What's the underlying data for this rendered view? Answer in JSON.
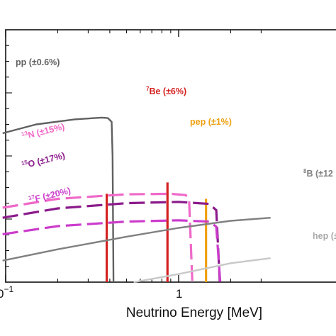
{
  "chart_data": {
    "type": "line",
    "title": "",
    "xlabel": "Neutrino Energy [MeV]",
    "ylabel": "",
    "x_scale": "log",
    "x_range_visible": [
      0.096,
      3.4
    ],
    "x_tick_labels": [
      {
        "value": 0.1,
        "base": "0",
        "exp": "−1"
      },
      {
        "value": 1,
        "text": "1"
      }
    ],
    "grid": false,
    "series": [
      {
        "name": "pp (±0.6%)",
        "color": "#606060",
        "style": "solid",
        "points": [
          [
            0.096,
            0.59
          ],
          [
            0.15,
            0.625
          ],
          [
            0.25,
            0.645
          ],
          [
            0.36,
            0.652
          ],
          [
            0.39,
            0.65
          ],
          [
            0.41,
            0.635
          ],
          [
            0.415,
            0.5
          ],
          [
            0.42,
            0.0
          ]
        ]
      },
      {
        "name": "7Be (±6%)",
        "color": "#d42020",
        "style": "line",
        "lines": [
          {
            "energy": 0.384,
            "height": 0.35
          },
          {
            "energy": 0.862,
            "height": 0.395
          }
        ]
      },
      {
        "name": "pep (±1%)",
        "color": "#f0a010",
        "style": "line",
        "lines": [
          {
            "energy": 1.44,
            "height": 0.33
          }
        ]
      },
      {
        "name": "13N (±15%)",
        "color": "#ef69c8",
        "style": "dashed",
        "points": [
          [
            0.096,
            0.295
          ],
          [
            0.2,
            0.33
          ],
          [
            0.5,
            0.348
          ],
          [
            0.9,
            0.35
          ],
          [
            1.1,
            0.345
          ],
          [
            1.15,
            0.325
          ],
          [
            1.2,
            0.0
          ]
        ]
      },
      {
        "name": "15O (±17%)",
        "color": "#8b1a8b",
        "style": "dashed",
        "points": [
          [
            0.096,
            0.255
          ],
          [
            0.2,
            0.292
          ],
          [
            0.5,
            0.313
          ],
          [
            1.0,
            0.318
          ],
          [
            1.5,
            0.31
          ],
          [
            1.65,
            0.285
          ],
          [
            1.73,
            0.0
          ]
        ]
      },
      {
        "name": "17F (±20%)",
        "color": "#cc3ccc",
        "style": "dashed",
        "points": [
          [
            0.096,
            0.19
          ],
          [
            0.2,
            0.222
          ],
          [
            0.5,
            0.24
          ],
          [
            1.0,
            0.245
          ],
          [
            1.5,
            0.24
          ],
          [
            1.65,
            0.22
          ],
          [
            1.74,
            0.0
          ]
        ]
      },
      {
        "name": "8B (±12",
        "color": "#808080",
        "style": "solid",
        "points": [
          [
            0.096,
            0.085
          ],
          [
            0.2,
            0.13
          ],
          [
            0.5,
            0.18
          ],
          [
            1.0,
            0.215
          ],
          [
            2.0,
            0.243
          ],
          [
            3.4,
            0.255
          ]
        ]
      },
      {
        "name": "hep (±",
        "color": "#c8c8c8",
        "style": "solid",
        "points": [
          [
            0.55,
            0.0
          ],
          [
            0.8,
            0.02
          ],
          [
            1.0,
            0.032
          ],
          [
            2.0,
            0.075
          ],
          [
            3.4,
            0.095
          ]
        ]
      }
    ],
    "labels": {
      "pp": "pp (±0.6%)",
      "be7": {
        "sup": "7",
        "text": "Be (±6%)"
      },
      "pep": "pep (±1%)",
      "n13": {
        "sup": "13",
        "text": "N (±15%)"
      },
      "o15": {
        "sup": "15",
        "text": "O (±17%)"
      },
      "f17": {
        "sup": "17",
        "text": "F (±20%)"
      },
      "b8": {
        "sup": "8",
        "text": "B (±12"
      },
      "hep": "hep (±"
    }
  }
}
